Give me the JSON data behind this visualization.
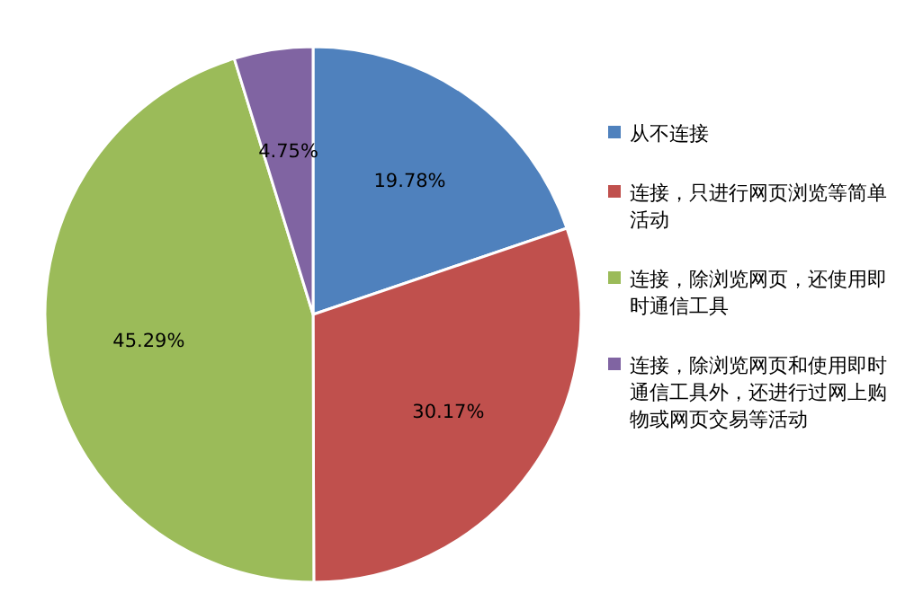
{
  "chart_data": {
    "type": "pie",
    "categories": [
      "从不连接",
      "连接，只进行网页浏览等简单活动",
      "连接，除浏览网页，还使用即时通信工具",
      "连接，除浏览网页和使用即时通信工具外，还进行过网上购物或网页交易等活动"
    ],
    "values": [
      19.78,
      30.17,
      45.29,
      4.75
    ],
    "value_labels": [
      "19.78%",
      "30.17%",
      "45.29%",
      "4.75%"
    ],
    "colors": [
      "#4f81bd",
      "#c0504d",
      "#9bbb59",
      "#8064a2"
    ],
    "legend": "right"
  }
}
